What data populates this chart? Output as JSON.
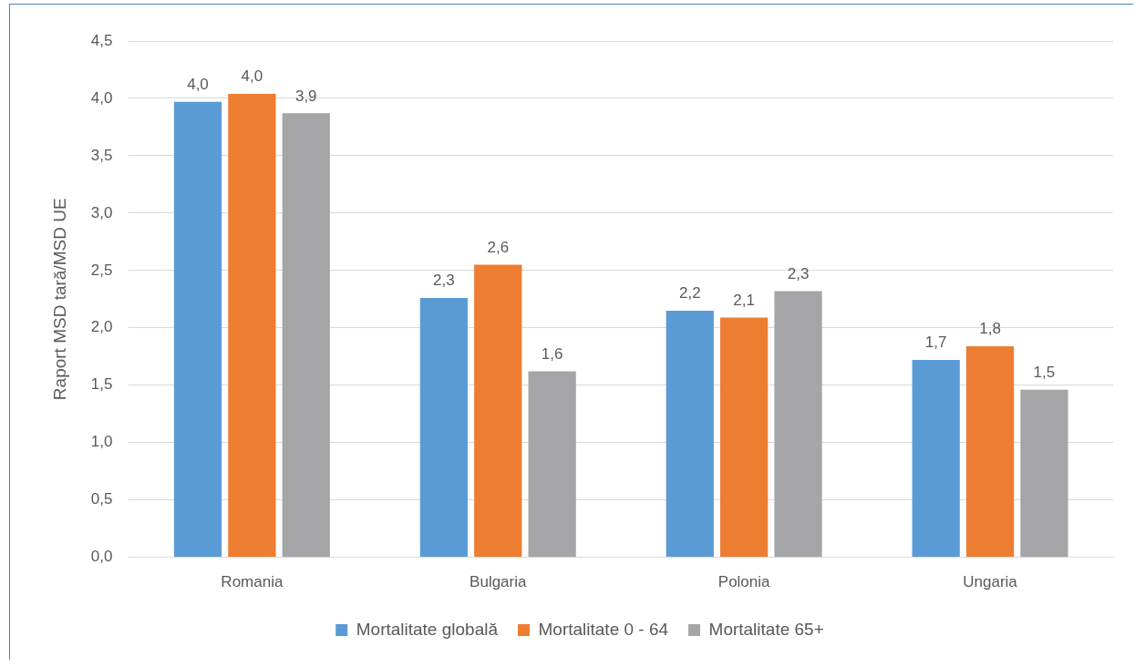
{
  "chart_data": {
    "type": "bar",
    "ylabel": "Raport MSD tară/MSD UE",
    "categories": [
      "Romania",
      "Bulgaria",
      "Polonia",
      "Ungaria"
    ],
    "series": [
      {
        "name": "Mortalitate globală",
        "color": "#5b9bd5",
        "values": [
          3.97,
          2.26,
          2.15,
          1.72
        ],
        "value_labels": [
          "4,0",
          "2,3",
          "2,2",
          "1,7"
        ]
      },
      {
        "name": "Mortalitate 0 - 64",
        "color": "#ed7d31",
        "values": [
          4.04,
          2.55,
          2.09,
          1.84
        ],
        "value_labels": [
          "4,0",
          "2,6",
          "2,1",
          "1,8"
        ]
      },
      {
        "name": "Mortalitate 65+",
        "color": "#a5a5a8",
        "values": [
          3.87,
          1.62,
          2.32,
          1.46
        ],
        "value_labels": [
          "3,9",
          "1,6",
          "2,3",
          "1,5"
        ]
      }
    ],
    "ylim": [
      0,
      4.5
    ],
    "yticks": [
      {
        "value": 0,
        "label": "0,0"
      },
      {
        "value": 0.5,
        "label": "0,5"
      },
      {
        "value": 1,
        "label": "1,0"
      },
      {
        "value": 1.5,
        "label": "1,5"
      },
      {
        "value": 2,
        "label": "2,0"
      },
      {
        "value": 2.5,
        "label": "2,5"
      },
      {
        "value": 3,
        "label": "3,0"
      },
      {
        "value": 3.5,
        "label": "3,5"
      },
      {
        "value": 4,
        "label": "4,0"
      },
      {
        "value": 4.5,
        "label": "4,5"
      }
    ],
    "grid": "y",
    "legend": "bottom"
  }
}
